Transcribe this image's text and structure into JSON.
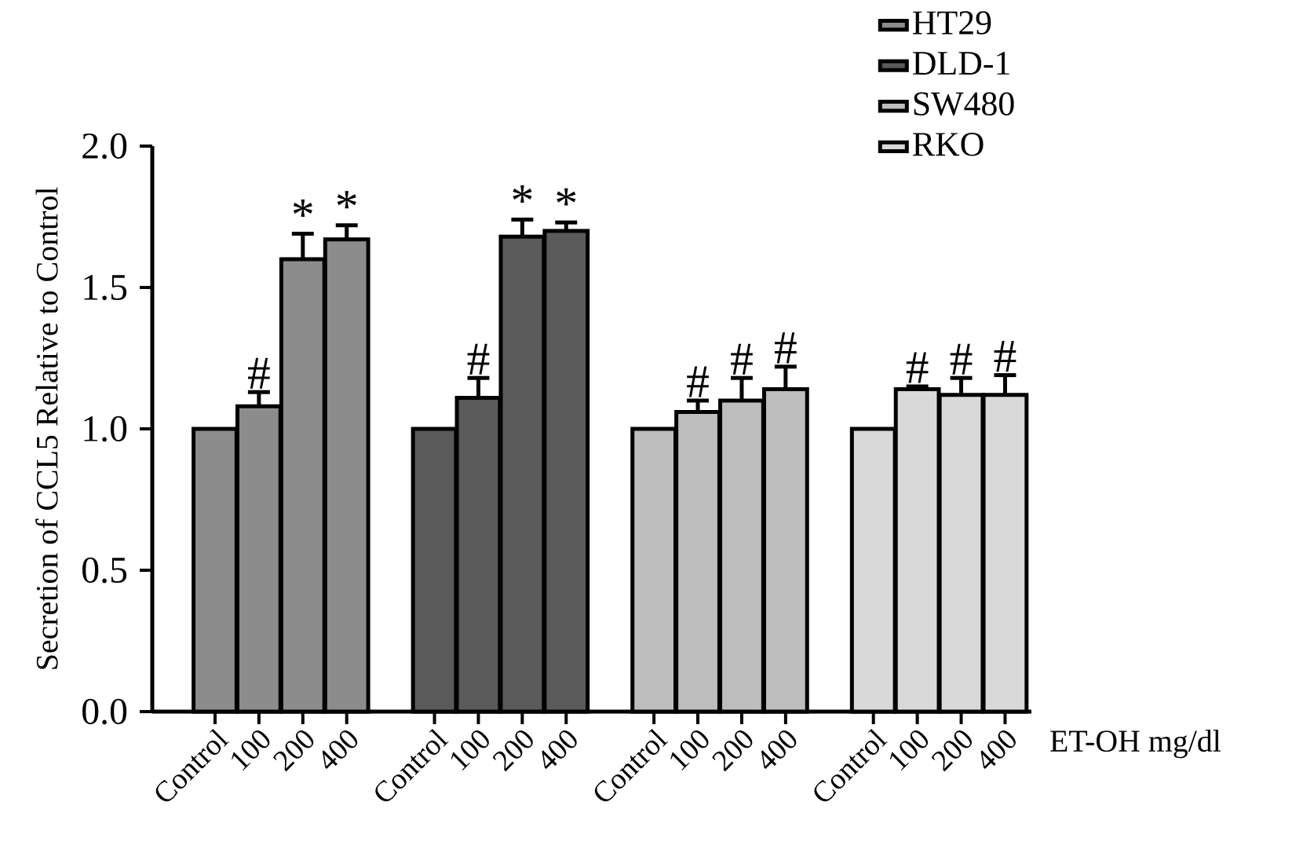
{
  "chart_data": {
    "type": "bar",
    "ylabel": "Secretion of CCL5 Relative to Control",
    "xlabel": "ET-OH mg/dl",
    "categories": [
      "Control",
      "100",
      "200",
      "400",
      "Control",
      "100",
      "200",
      "400",
      "Control",
      "100",
      "200",
      "400",
      "Control",
      "100",
      "200",
      "400"
    ],
    "ylim": [
      0,
      2.0
    ],
    "yticks": [
      {
        "value": 0,
        "label": "0.0"
      },
      0.5,
      {
        "value": 1.0,
        "label": "1.0"
      },
      1.5,
      {
        "value": 2.0,
        "label": "2.0"
      }
    ],
    "legend": "top right",
    "series": [
      {
        "name": "HT29",
        "color": "#8c8c8c",
        "values": [
          1.0,
          1.08,
          1.6,
          1.67,
          null,
          null,
          null,
          null,
          null,
          null,
          null,
          null,
          null,
          null,
          null,
          null
        ],
        "errors": [
          null,
          [
            1.08,
            1.13
          ],
          [
            1.6,
            1.69
          ],
          [
            1.67,
            1.72
          ],
          null,
          null,
          null,
          null,
          null,
          null,
          null,
          null,
          null,
          null,
          null,
          null
        ],
        "value_labels": [
          null,
          "#",
          "*",
          "*",
          null,
          null,
          null,
          null,
          null,
          null,
          null,
          null,
          null,
          null,
          null,
          null
        ]
      },
      {
        "name": "DLD-1",
        "color": "#5a5a5a",
        "values": [
          null,
          null,
          null,
          null,
          1.0,
          1.11,
          1.68,
          1.7,
          null,
          null,
          null,
          null,
          null,
          null,
          null,
          null
        ],
        "errors": [
          null,
          null,
          null,
          null,
          null,
          [
            1.11,
            1.18
          ],
          [
            1.68,
            1.74
          ],
          [
            1.7,
            1.73
          ],
          null,
          null,
          null,
          null,
          null,
          null,
          null,
          null
        ],
        "value_labels": [
          null,
          null,
          null,
          null,
          null,
          "#",
          "*",
          "*",
          null,
          null,
          null,
          null,
          null,
          null,
          null,
          null
        ]
      },
      {
        "name": "SW480",
        "color": "#bdbdbd",
        "values": [
          null,
          null,
          null,
          null,
          null,
          null,
          null,
          null,
          1.0,
          1.06,
          1.1,
          1.14,
          null,
          null,
          null,
          null
        ],
        "errors": [
          null,
          null,
          null,
          null,
          null,
          null,
          null,
          null,
          null,
          [
            1.06,
            1.1
          ],
          [
            1.1,
            1.18
          ],
          [
            1.14,
            1.22
          ],
          null,
          null,
          null,
          null
        ],
        "value_labels": [
          null,
          null,
          null,
          null,
          null,
          null,
          null,
          null,
          null,
          "#",
          "#",
          "#",
          null,
          null,
          null,
          null
        ]
      },
      {
        "name": "RKO",
        "color": "#d9d9d9",
        "values": [
          null,
          null,
          null,
          null,
          null,
          null,
          null,
          null,
          null,
          null,
          null,
          null,
          1.0,
          1.14,
          1.12,
          1.12
        ],
        "errors": [
          null,
          null,
          null,
          null,
          null,
          null,
          null,
          null,
          null,
          null,
          null,
          null,
          null,
          [
            1.14,
            1.15
          ],
          [
            1.12,
            1.18
          ],
          [
            1.12,
            1.19
          ]
        ],
        "value_labels": [
          null,
          null,
          null,
          null,
          null,
          null,
          null,
          null,
          null,
          null,
          null,
          null,
          null,
          "#",
          "#",
          "#"
        ]
      }
    ]
  }
}
